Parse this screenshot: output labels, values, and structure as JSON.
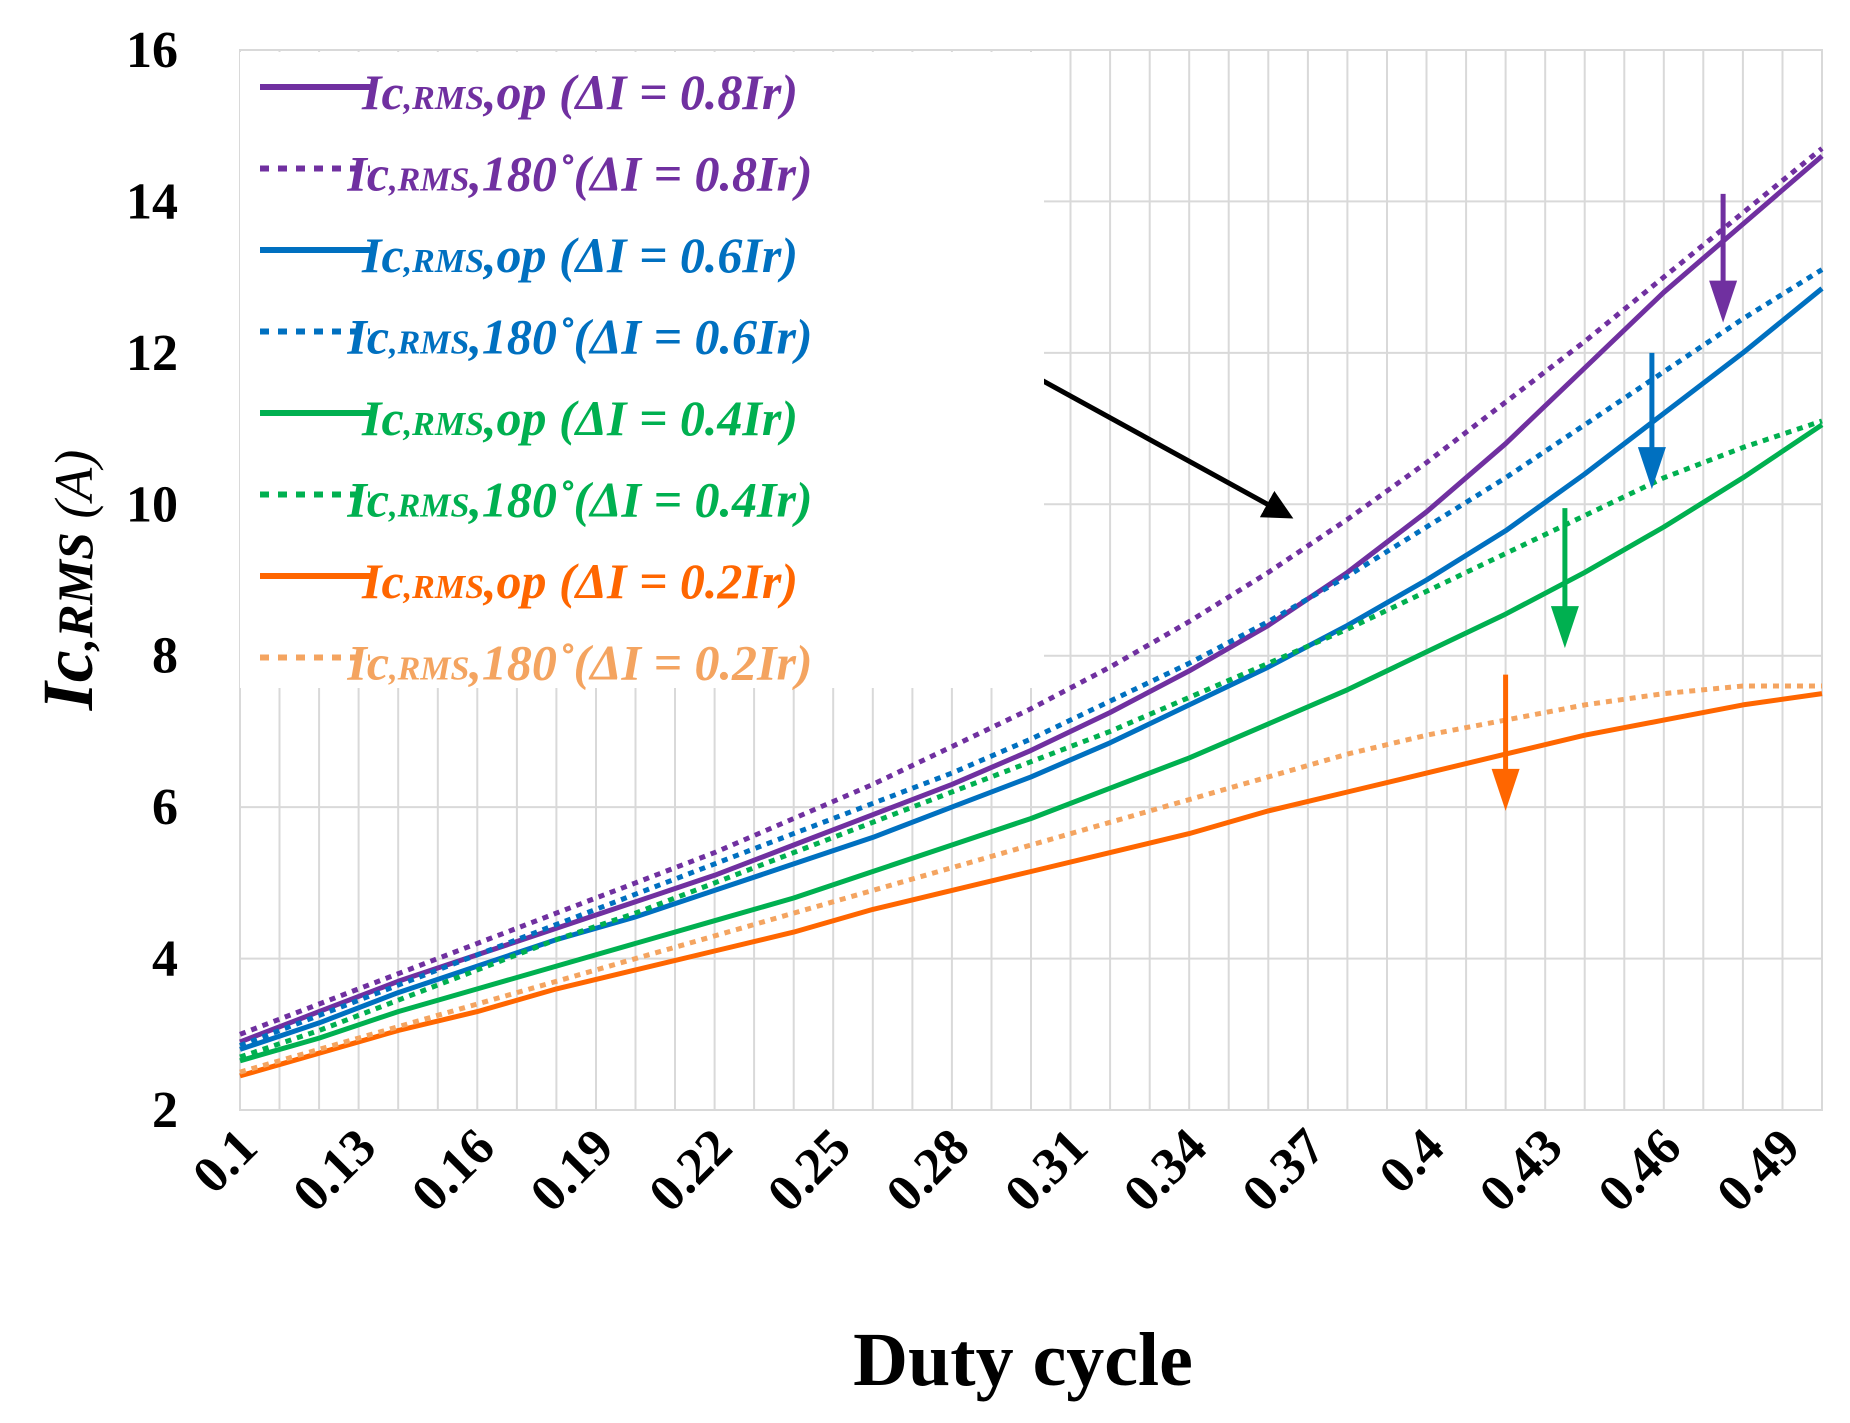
{
  "chart_data": {
    "type": "line",
    "title": "",
    "xlabel": "Duty cycle",
    "ylabel": {
      "main": "Ic",
      "sub": ",RMS",
      "unit": " (A)"
    },
    "xlim": [
      0.1,
      0.5
    ],
    "ylim": [
      2,
      16
    ],
    "yticks": [
      2,
      4,
      6,
      8,
      10,
      12,
      14,
      16
    ],
    "ytick_labels": [
      "2",
      "4",
      "6",
      "8",
      "10",
      "12",
      "14",
      "16"
    ],
    "xtick_values": [
      0.1,
      0.13,
      0.16,
      0.19,
      0.22,
      0.25,
      0.28,
      0.31,
      0.34,
      0.37,
      0.4,
      0.43,
      0.46,
      0.49
    ],
    "xtick_labels": [
      "0.1",
      "0.13",
      "0.16",
      "0.19",
      "0.22",
      "0.25",
      "0.28",
      "0.31",
      "0.34",
      "0.37",
      "0.4",
      "0.43",
      "0.46",
      "0.49"
    ],
    "grid": true,
    "legend_position": "top-left",
    "x": [
      0.1,
      0.12,
      0.14,
      0.16,
      0.18,
      0.2,
      0.22,
      0.24,
      0.26,
      0.28,
      0.3,
      0.32,
      0.34,
      0.36,
      0.38,
      0.4,
      0.42,
      0.44,
      0.46,
      0.48,
      0.5
    ],
    "series": [
      {
        "name": "Ic,RMS,op (ΔI = 0.8Ir)",
        "label_main": "Ic",
        "label_sub": ",RMS",
        "label_rest": ",op (ΔI = 0.8Ir)",
        "color": "#7030A0",
        "dash": "solid",
        "values": [
          2.9,
          3.3,
          3.7,
          4.05,
          4.4,
          4.75,
          5.1,
          5.5,
          5.9,
          6.3,
          6.75,
          7.25,
          7.8,
          8.4,
          9.1,
          9.9,
          10.8,
          11.8,
          12.8,
          13.7,
          14.6
        ]
      },
      {
        "name": "Ic,RMS,180°(ΔI = 0.8Ir)",
        "label_main": "Ic",
        "label_sub": ",RMS",
        "label_rest": ",180˚(ΔI = 0.8Ir)",
        "color": "#7030A0",
        "dash": "dotted",
        "values": [
          3.0,
          3.4,
          3.8,
          4.2,
          4.6,
          5.0,
          5.4,
          5.85,
          6.3,
          6.8,
          7.3,
          7.85,
          8.45,
          9.1,
          9.8,
          10.55,
          11.35,
          12.15,
          13.0,
          13.85,
          14.7
        ]
      },
      {
        "name": "Ic,RMS,op (ΔI = 0.6Ir)",
        "label_main": "Ic",
        "label_sub": ",RMS",
        "label_rest": ",op (ΔI = 0.6Ir)",
        "color": "#0070C0",
        "dash": "solid",
        "values": [
          2.8,
          3.15,
          3.55,
          3.9,
          4.25,
          4.55,
          4.9,
          5.25,
          5.6,
          6.0,
          6.4,
          6.85,
          7.35,
          7.85,
          8.4,
          9.0,
          9.65,
          10.4,
          11.2,
          12.0,
          12.85
        ]
      },
      {
        "name": "Ic,RMS,180°(ΔI = 0.6Ir)",
        "label_main": "Ic",
        "label_sub": ",RMS",
        "label_rest": ",180˚(ΔI = 0.6Ir)",
        "color": "#0070C0",
        "dash": "dotted",
        "values": [
          2.85,
          3.25,
          3.65,
          4.05,
          4.45,
          4.85,
          5.25,
          5.65,
          6.05,
          6.45,
          6.9,
          7.4,
          7.9,
          8.45,
          9.05,
          9.7,
          10.35,
          11.05,
          11.75,
          12.45,
          13.1
        ]
      },
      {
        "name": "Ic,RMS,op (ΔI = 0.4Ir)",
        "label_main": "Ic",
        "label_sub": ",RMS",
        "label_rest": ",op (ΔI = 0.4Ir)",
        "color": "#00B050",
        "dash": "solid",
        "values": [
          2.65,
          2.95,
          3.3,
          3.6,
          3.9,
          4.2,
          4.5,
          4.8,
          5.15,
          5.5,
          5.85,
          6.25,
          6.65,
          7.1,
          7.55,
          8.05,
          8.55,
          9.1,
          9.7,
          10.35,
          11.05
        ]
      },
      {
        "name": "Ic,RMS,180°(ΔI = 0.4Ir)",
        "label_main": "Ic",
        "label_sub": ",RMS",
        "label_rest": ",180˚(ΔI = 0.4Ir)",
        "color": "#00B050",
        "dash": "dotted",
        "values": [
          2.7,
          3.05,
          3.45,
          3.85,
          4.25,
          4.6,
          5.0,
          5.4,
          5.8,
          6.2,
          6.6,
          7.0,
          7.45,
          7.9,
          8.35,
          8.85,
          9.35,
          9.85,
          10.35,
          10.75,
          11.1
        ]
      },
      {
        "name": "Ic,RMS,op (ΔI = 0.2Ir)",
        "label_main": "Ic",
        "label_sub": ",RMS",
        "label_rest": ",op (ΔI = 0.2Ir)",
        "color": "#FF6600",
        "dash": "solid",
        "values": [
          2.45,
          2.75,
          3.05,
          3.3,
          3.6,
          3.85,
          4.1,
          4.35,
          4.65,
          4.9,
          5.15,
          5.4,
          5.65,
          5.95,
          6.2,
          6.45,
          6.7,
          6.95,
          7.15,
          7.35,
          7.5
        ]
      },
      {
        "name": "Ic,RMS,180°(ΔI = 0.2Ir)",
        "label_main": "Ic",
        "label_sub": ",RMS",
        "label_rest": ",180˚(ΔI = 0.2Ir)",
        "color": "#F4A460",
        "dash": "dotted",
        "values": [
          2.5,
          2.8,
          3.1,
          3.4,
          3.7,
          4.0,
          4.3,
          4.6,
          4.9,
          5.2,
          5.5,
          5.8,
          6.1,
          6.4,
          6.7,
          6.95,
          7.15,
          7.35,
          7.5,
          7.6,
          7.6
        ]
      }
    ],
    "annotations": {
      "black_arrow": {
        "from_legend_series": 3,
        "to": [
          0.365,
          9.85
        ],
        "color": "#000000"
      },
      "arrows": [
        {
          "x": 0.475,
          "from": 14.1,
          "to": 12.4,
          "color": "#7030A0"
        },
        {
          "x": 0.457,
          "from": 12.0,
          "to": 10.2,
          "color": "#0070C0"
        },
        {
          "x": 0.435,
          "from": 9.95,
          "to": 8.1,
          "color": "#00B050"
        },
        {
          "x": 0.42,
          "from": 7.75,
          "to": 5.95,
          "color": "#FF6600"
        }
      ]
    }
  }
}
